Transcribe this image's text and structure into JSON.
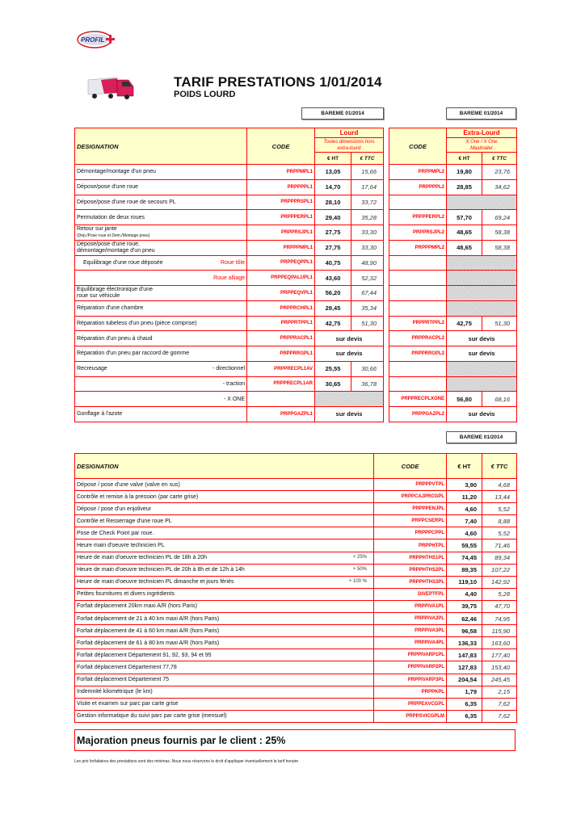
{
  "header": {
    "logo_text": "PROFIL+",
    "title": "TARIF PRESTATIONS 1/01/2014",
    "subtitle": "POIDS LOURD"
  },
  "colors": {
    "border": "#ff0000",
    "header_bg": "#ffffcc",
    "code": "#ff0000"
  },
  "bareme_label": "BAREME 01/2014",
  "table1": {
    "designation": "DESIGNATION",
    "code": "CODE",
    "lourd": {
      "title": "Lourd",
      "subtitle": "Toutes dimensions hors extra-lourd"
    },
    "extra": {
      "title": "Extra-Lourd",
      "subtitle": "X One / X One Maxitrailer"
    },
    "ht": "€ HT",
    "ttc": "€ TTC",
    "rows": [
      {
        "d": "Démontage/montage d'un pneu",
        "c1": "PRPPMPL1",
        "h1": "13,05",
        "t1": "15,66",
        "c2": "PRPPMPL2",
        "h2": "19,80",
        "t2": "23,76"
      },
      {
        "d": "Dépose/pose d'une roue",
        "c1": "PRPPPPL1",
        "h1": "14,70",
        "t1": "17,64",
        "c2": "PRPPPPL2",
        "h2": "28,85",
        "t2": "34,62"
      },
      {
        "d": "Dépose/pose d'une roue de secours PL",
        "c1": "PRPPPRSPL1",
        "h1": "28,10",
        "t1": "33,72",
        "g2": true
      },
      {
        "d": "Permutation de deux roues",
        "c1": "PRPPPERPL1",
        "h1": "29,40",
        "t1": "35,28",
        "c2": "PRPPPERPL2",
        "h2": "57,70",
        "t2": "69,24"
      },
      {
        "d": "Retour sur jante",
        "note": "(Dép./Pose roue et Dem./Montage pneu)",
        "c1": "PRPPRSJPL1",
        "h1": "27,75",
        "t1": "33,30",
        "c2": "PRPPRSJPL2",
        "h2": "48,65",
        "t2": "58,38"
      },
      {
        "d": "Dépose/pose d'une roue,",
        "d2": "démontage/montage d'un pneu",
        "c1": "PRPPPMPL1",
        "h1": "27,75",
        "t1": "33,30",
        "c2": "PRPPPMPL2",
        "h2": "48,65",
        "t2": "58,38"
      },
      {
        "d": "Equilibrage d'une roue déposée",
        "sub": "Roue tôle",
        "subred": true,
        "indent": true,
        "c1": "PRPPEQPPL1",
        "h1": "40,75",
        "t1": "48,90",
        "g2": true
      },
      {
        "d": "",
        "sub": "Roue alliage",
        "subred": true,
        "c1": "PRPPEQPALUPL1",
        "h1": "43,60",
        "t1": "52,32",
        "g2": true
      },
      {
        "d": "Equilibrage électronique d'une",
        "d2": "roue sur véhicule",
        "c1": "PRPPEQVPL1",
        "h1": "56,20",
        "t1": "67,44",
        "g2": true
      },
      {
        "d": "Réparation d'une chambre",
        "c1": "PRPPRCHPL1",
        "h1": "29,45",
        "t1": "35,34",
        "g2": true
      },
      {
        "d": "Réparation tubeless d'un pneu (pièce comprise)",
        "c1": "PRPPRTPPL1",
        "h1": "42,75",
        "t1": "51,30",
        "c2": "PRPPRTPPL2",
        "h2": "42,75",
        "t2": "51,30"
      },
      {
        "d": "Réparation d'un pneu à chaud",
        "c1": "PRPPRACPL1",
        "dv1": "sur devis",
        "c2": "PRPPRACPL2",
        "dv2": "sur devis"
      },
      {
        "d": "Réparation d'un pneu par raccord de gomme",
        "c1": "PRPPRRGPL1",
        "dv1": "sur devis",
        "c2": "PRPPRRGPL2",
        "dv2": "sur devis"
      },
      {
        "d": "Recreusage",
        "sub": "- directionnel",
        "c1": "PRPPRECPL1AV",
        "h1": "25,55",
        "t1": "30,66",
        "g2": true
      },
      {
        "d": "",
        "sub": "- traction",
        "c1": "PRPPRECPL1AR",
        "h1": "30,65",
        "t1": "36,78",
        "g2": true
      },
      {
        "d": "",
        "sub": "- X ONE",
        "c1": "",
        "g1": true,
        "c2": "PRPPRECPLXONE",
        "h2": "56,80",
        "t2": "68,16"
      },
      {
        "d": "Gonflage à l'azote",
        "c1": "PRPPGAZPL1",
        "dv1": "sur devis",
        "c2": "PRPPGAZPL2",
        "dv2": "sur devis"
      }
    ]
  },
  "table2": {
    "designation": "DESIGNATION",
    "code": "CODE",
    "ht": "€ HT",
    "ttc": "€ TTC",
    "rows": [
      {
        "d": "Dépose / pose d'une valve (valve en sus)",
        "c": "PRPPPVTPL",
        "h": "3,90",
        "t": "4,68"
      },
      {
        "d": "Contrôle et remise à la pression  (par carte grise)",
        "c": "PRPPCAJPRCGPL",
        "h": "11,20",
        "t": "13,44"
      },
      {
        "d": "Dépose / pose d'un enjoliveur",
        "c": "PRPPPENJPL",
        "h": "4,60",
        "t": "5,52"
      },
      {
        "d": "Contrôle et Resserrage d'une roue PL",
        "c": "PRPPCSERPL",
        "h": "7,40",
        "t": "8,88"
      },
      {
        "d": "Pose de Check Point par roue.",
        "c": "PRPPPCPPL",
        "h": "4,60",
        "t": "5,52"
      },
      {
        "d": "Heure main d'oeuvre technicien PL",
        "c": "PRPPHTPL",
        "h": "59,55",
        "t": "71,46"
      },
      {
        "d": "Heure de main d'oeuvre technicien PL de 18h à 20h",
        "p": "+ 25%",
        "c": "PRPPHTHS1PL",
        "h": "74,45",
        "t": "89,34"
      },
      {
        "d": "Heure de main d'oeuvre technicien PL de 20h à 8h  et de 12h à 14h",
        "p": "+ 50%",
        "c": "PRPPHTHS2PL",
        "h": "89,35",
        "t": "107,22"
      },
      {
        "d": "Heure de main d'oeuvre technicien PL dimanche et jours fériés",
        "p": "+ 100 %",
        "c": "PRPPHTHS3PL",
        "h": "119,10",
        "t": "142,92"
      },
      {
        "d": "Petites fournitures et divers ingrédients",
        "c": "DIVEPTFPL",
        "h": "4,40",
        "t": "5,28"
      },
      {
        "d": "Forfait déplacement 20km maxi A/R (hors Paris)",
        "c": "PRPPIVA1PL",
        "h": "39,75",
        "t": "47,70"
      },
      {
        "d": "Forfait déplacement de 21 à 40 km maxi A/R (hors Paris)",
        "c": "PRPPIVA2PL",
        "h": "62,46",
        "t": "74,95"
      },
      {
        "d": "Forfait déplacement de 41 à 60 km maxi A/R (hors Paris)",
        "c": "PRPPIVA3PL",
        "h": "96,58",
        "t": "115,90"
      },
      {
        "d": "Forfait déplacement de 61 à 80 km maxi A/R (hors Paris)",
        "c": "PRPPIVA4PL",
        "h": "136,33",
        "t": "163,60"
      },
      {
        "d": "Forfait déplacement Département 91, 92, 93, 94 et 95",
        "c": "PRPPIVARP1PL",
        "h": "147,83",
        "t": "177,40"
      },
      {
        "d": "Forfait déplacement Département 77,78",
        "c": "PRPPIVARP2PL",
        "h": "127,83",
        "t": "153,40"
      },
      {
        "d": "Forfait déplacement Département 75",
        "c": "PRPPIVARP3PL",
        "h": "204,54",
        "t": "245,45"
      },
      {
        "d": "Indemnité kilométrique (le km)",
        "c": "PRPPKPL",
        "h": "1,79",
        "t": "2,15"
      },
      {
        "d": "Visite et examen sur parc par carte grise",
        "c": "PRPPEXVCGPL",
        "h": "6,35",
        "t": "7,62"
      },
      {
        "d": "Gestion informatique du suivi parc par carte grise (mensuel)",
        "c": "PRPPSVICGPLM",
        "h": "6,35",
        "t": "7,62"
      }
    ]
  },
  "majoration": "Majoration pneus fournis par le client : 25%",
  "footer": "Les prix forfaitaires des prestations sont des minimas. Nous nous réservons le droit d'appliquer éventuellement le tarif horaire"
}
